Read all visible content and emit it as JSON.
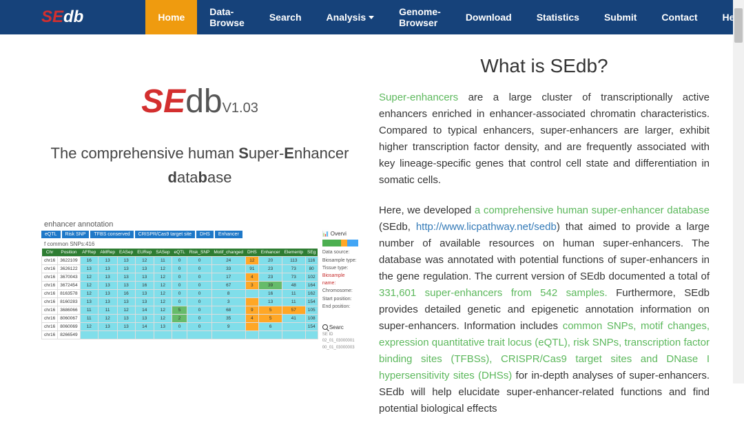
{
  "nav": {
    "logo_se": "SE",
    "logo_db": "db",
    "items": [
      "Home",
      "Data-Browse",
      "Search",
      "Analysis",
      "Genome-Browser",
      "Download",
      "Statistics",
      "Submit",
      "Contact",
      "Help"
    ]
  },
  "hero": {
    "logo_se": "SE",
    "logo_db": "db",
    "version": "V1.03",
    "tagline_pre": "The comprehensive human ",
    "tagline_s": "S",
    "tagline_uper": "uper-",
    "tagline_e": "E",
    "tagline_nhancer": "nhancer",
    "tagline_d": "d",
    "tagline_ata": "ata",
    "tagline_b": "b",
    "tagline_ase": "ase"
  },
  "mini": {
    "annot": "enhancer annotation",
    "overview": "Overvi",
    "tabs": [
      "eQTL",
      "Risk SNP",
      "TFBS conserved",
      "CRISPR/Cas9 target site",
      "DHS",
      "Enhancer"
    ],
    "count": "f common SNPs:416",
    "headers": [
      "Chr",
      "Position",
      "AFRep",
      "AMRep",
      "EASep",
      "EURep",
      "SASep",
      "eQTL",
      "Risk_SNP",
      "Motif_changed",
      "DHS",
      "Enhancer",
      "Elementp",
      "SEg"
    ],
    "rows": [
      {
        "cells": [
          "chr16",
          "3622109",
          "16",
          "13",
          "13",
          "12",
          "11",
          "0",
          "0",
          "24",
          "12",
          "20",
          "113",
          "116"
        ]
      },
      {
        "cells": [
          "chr16",
          "3626122",
          "13",
          "13",
          "13",
          "13",
          "12",
          "0",
          "0",
          "33",
          "91",
          "23",
          "73",
          "80"
        ]
      },
      {
        "cells": [
          "chr16",
          "3670043",
          "12",
          "13",
          "13",
          "13",
          "12",
          "0",
          "0",
          "17",
          "4",
          "23",
          "73",
          "102"
        ]
      },
      {
        "cells": [
          "chr16",
          "3672454",
          "12",
          "13",
          "13",
          "16",
          "12",
          "0",
          "0",
          "67",
          "3",
          "39",
          "48",
          "164"
        ]
      },
      {
        "cells": [
          "chr16",
          "8163578",
          "12",
          "13",
          "16",
          "13",
          "12",
          "0",
          "0",
          "8",
          "",
          "16",
          "11",
          "162"
        ]
      },
      {
        "cells": [
          "chr16",
          "8160283",
          "13",
          "13",
          "13",
          "13",
          "12",
          "0",
          "0",
          "3",
          "",
          "13",
          "11",
          "154"
        ]
      },
      {
        "cells": [
          "chr16",
          "3686066",
          "11",
          "11",
          "12",
          "14",
          "12",
          "5",
          "0",
          "68",
          "9",
          "5",
          "57",
          "105"
        ]
      },
      {
        "cells": [
          "chr16",
          "8060067",
          "11",
          "12",
          "13",
          "13",
          "12",
          "2",
          "0",
          "35",
          "4",
          "5",
          "41",
          "108"
        ]
      },
      {
        "cells": [
          "chr16",
          "8060069",
          "12",
          "13",
          "13",
          "14",
          "13",
          "0",
          "0",
          "9",
          "",
          "6",
          "",
          "154"
        ]
      },
      {
        "cells": [
          "chr16",
          "8266549",
          "",
          "",
          "",
          "",
          "",
          "",
          "",
          "",
          "",
          "",
          "",
          ""
        ]
      }
    ],
    "meta_labels": {
      "data_source": "Data source:",
      "biosample_type": "Biosample type:",
      "tissue_type": "Tissue type:",
      "biosample_name": "Biosample name:",
      "chromosome": "Chromosome:",
      "start_position": "Start position:",
      "end_position": "End position:"
    },
    "search_label": "Searc",
    "se_id": "SE ID",
    "se_items": [
      "02_01_03000001",
      "00_01_03000003"
    ]
  },
  "about": {
    "heading": "What is SEdb?",
    "p1_link": "Super-enhancers",
    "p1_text": " are a large cluster of transcriptionally active enhancers enriched in enhancer-associated chromatin characteristics. Compared to typical enhancers, super-enhancers are larger, exhibit higher transcription factor density, and are frequently associated with key lineage-specific genes that control cell state and differentiation in somatic cells.",
    "p2_pre": "Here, we developed ",
    "p2_link1": "a comprehensive human super-enhancer database",
    "p2_mid1": " (SEdb, ",
    "p2_link2": "http://www.licpathway.net/sedb",
    "p2_mid2": ") that aimed to provide a large number of available resources on human super-enhancers. The database was annotated with potential functions of super-enhancers in the gene regulation. The current version of SEdb documented a total of ",
    "p2_link3": "331,601 super-enhancers from 542 samples.",
    "p2_mid3": " Furthermore, SEdb provides detailed genetic and epigenetic annotation information on super-enhancers. Information includes ",
    "p2_link4": "common SNPs, motif changes, expression quantitative trait locus (eQTL), risk SNPs, transcription factor binding sites (TFBSs), CRISPR/Cas9 target sites and DNase I hypersensitivity sites (DHSs)",
    "p2_mid4": " for in-depth analyses of super-enhancers. SEdb will help elucidate super-enhancer-related functions and find potential biological effects"
  }
}
